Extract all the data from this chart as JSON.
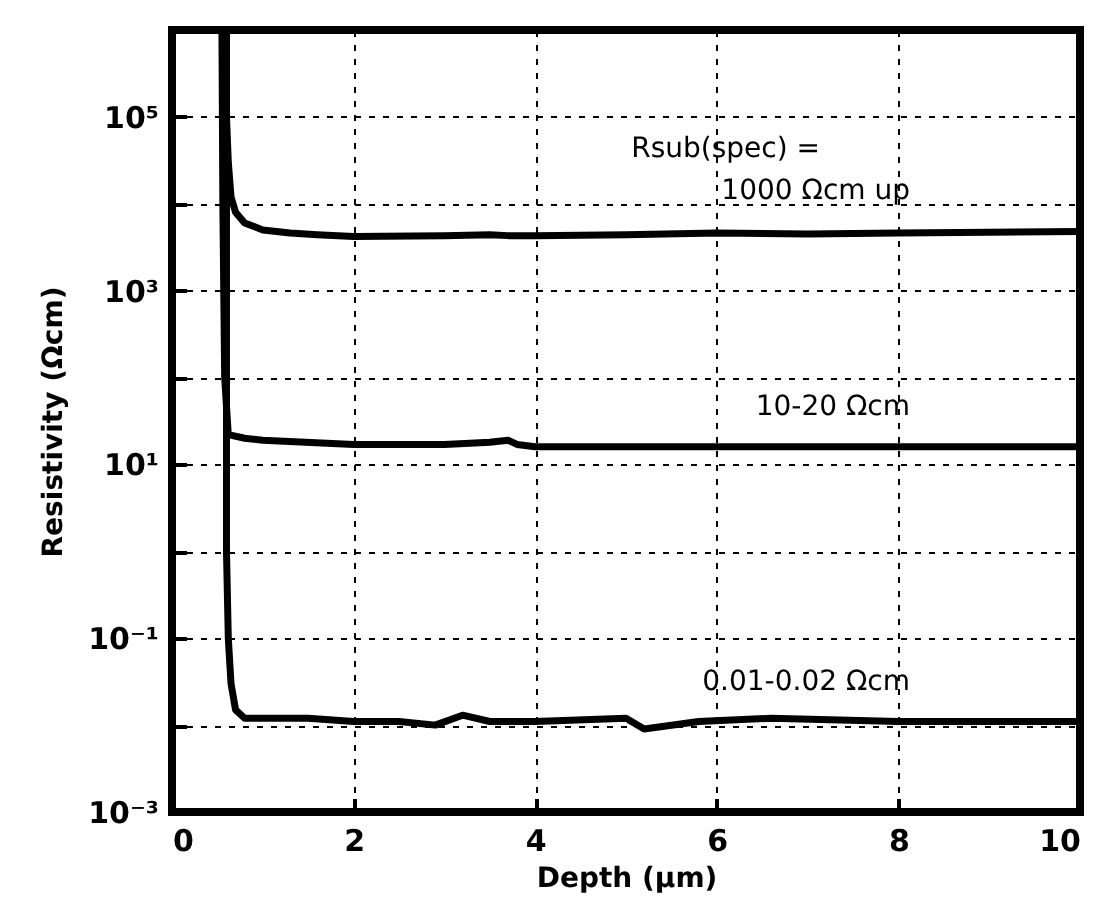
{
  "chart_data": {
    "type": "line",
    "xlabel": "Depth (µm)",
    "ylabel": "Resistivity (Ωcm)",
    "annotations": [
      "Rsub(spec) ="
    ],
    "xlim": [
      0,
      10
    ],
    "xticks": [
      0,
      2,
      4,
      6,
      8,
      10
    ],
    "ylim": [
      0.001,
      1000000
    ],
    "log": "y",
    "yticks": [
      {
        "value": 0.001,
        "label": "10⁻³"
      },
      {
        "value": 0.01,
        "label": null
      },
      {
        "value": 0.1,
        "label": "10⁻¹"
      },
      {
        "value": 1,
        "label": null
      },
      {
        "value": 10,
        "label": "10¹"
      },
      {
        "value": 100,
        "label": null
      },
      {
        "value": 1000,
        "label": "10³"
      },
      {
        "value": 10000,
        "label": null
      },
      {
        "value": 100000,
        "label": "10⁵"
      }
    ],
    "grid": true,
    "marker": "none",
    "line_style": "solid",
    "series": [
      {
        "name": "1000 Ωcm up",
        "color": "#000000",
        "x": [
          0.6,
          0.6,
          0.62,
          0.65,
          0.7,
          0.8,
          1,
          1.3,
          1.6,
          2,
          3,
          3.5,
          3.7,
          4,
          5,
          6,
          7,
          8,
          9,
          10
        ],
        "values": [
          1000000,
          100000,
          30000,
          12000,
          8000,
          6000,
          5000,
          4600,
          4400,
          4200,
          4300,
          4400,
          4300,
          4300,
          4400,
          4600,
          4500,
          4600,
          4700,
          4800
        ]
      },
      {
        "name": "10-20 Ωcm",
        "color": "#000000",
        "x": [
          0.55,
          0.56,
          0.58,
          0.62,
          0.8,
          1,
          2,
          3,
          3.5,
          3.7,
          3.8,
          4,
          6,
          8,
          10
        ],
        "values": [
          1000000,
          10000,
          100,
          22,
          20,
          19,
          17,
          17,
          18,
          19,
          17,
          16,
          16,
          16,
          16
        ]
      },
      {
        "name": "0.01-0.02 Ωcm",
        "color": "#000000",
        "x": [
          0.6,
          0.6,
          0.62,
          0.65,
          0.7,
          0.8,
          1,
          1.5,
          2,
          2.5,
          2.9,
          3.2,
          3.5,
          4,
          5,
          5.2,
          5.8,
          6.6,
          8,
          10
        ],
        "values": [
          1000000,
          1,
          0.1,
          0.03,
          0.015,
          0.012,
          0.012,
          0.012,
          0.011,
          0.011,
          0.01,
          0.013,
          0.011,
          0.011,
          0.012,
          0.009,
          0.011,
          0.012,
          0.011,
          0.011
        ]
      }
    ]
  }
}
